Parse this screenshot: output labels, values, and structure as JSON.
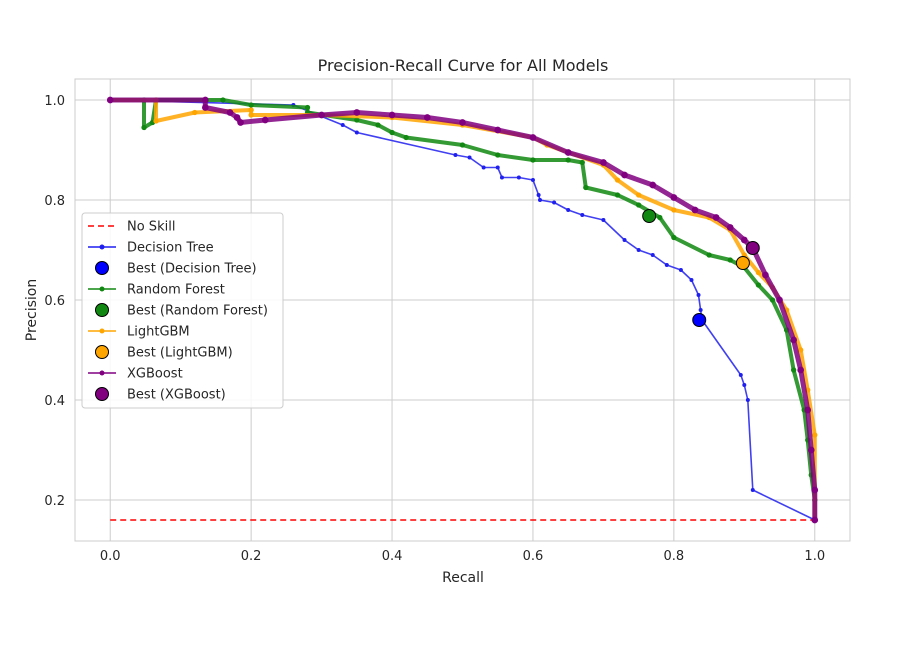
{
  "chart_data": {
    "type": "line",
    "title": "Precision-Recall Curve for All Models",
    "xlabel": "Recall",
    "ylabel": "Precision",
    "xlim": [
      -0.05,
      1.05
    ],
    "ylim": [
      0.118,
      1.042
    ],
    "xticks": [
      0.0,
      0.2,
      0.4,
      0.6,
      0.8,
      1.0
    ],
    "xtick_labels": [
      "0.0",
      "0.2",
      "0.4",
      "0.6",
      "0.8",
      "1.0"
    ],
    "yticks": [
      0.2,
      0.4,
      0.6,
      0.8,
      1.0
    ],
    "ytick_labels": [
      "0.2",
      "0.4",
      "0.6",
      "0.8",
      "1.0"
    ],
    "grid": true,
    "legend_position": "center-left",
    "baseline": {
      "name": "No Skill",
      "y": 0.16,
      "color": "#ff0000",
      "style": "dashed"
    },
    "series": [
      {
        "name": "Decision Tree",
        "color": "#1f1ff0",
        "x": [
          0.0,
          0.26,
          0.33,
          0.35,
          0.49,
          0.51,
          0.53,
          0.55,
          0.556,
          0.58,
          0.6,
          0.608,
          0.61,
          0.63,
          0.65,
          0.67,
          0.7,
          0.73,
          0.75,
          0.77,
          0.79,
          0.81,
          0.825,
          0.835,
          0.838,
          0.84,
          0.895,
          0.9,
          0.905,
          0.912,
          1.0
        ],
        "y": [
          1.0,
          0.99,
          0.95,
          0.935,
          0.89,
          0.885,
          0.865,
          0.865,
          0.845,
          0.845,
          0.84,
          0.81,
          0.8,
          0.795,
          0.78,
          0.77,
          0.76,
          0.72,
          0.7,
          0.69,
          0.67,
          0.66,
          0.64,
          0.61,
          0.58,
          0.56,
          0.45,
          0.43,
          0.4,
          0.22,
          0.16
        ]
      },
      {
        "name": "Best (Decision Tree)",
        "color": "#0000ff",
        "x": [
          0.836
        ],
        "y": [
          0.56
        ]
      },
      {
        "name": "Random Forest",
        "color": "#118811",
        "x": [
          0.0,
          0.048,
          0.048,
          0.06,
          0.065,
          0.16,
          0.2,
          0.28,
          0.28,
          0.35,
          0.38,
          0.4,
          0.42,
          0.5,
          0.55,
          0.6,
          0.65,
          0.67,
          0.675,
          0.72,
          0.75,
          0.78,
          0.8,
          0.85,
          0.88,
          0.9,
          0.92,
          0.94,
          0.96,
          0.97,
          0.985,
          0.99,
          0.995,
          1.0,
          1.0
        ],
        "y": [
          1.0,
          1.0,
          0.945,
          0.955,
          1.0,
          1.0,
          0.99,
          0.985,
          0.975,
          0.96,
          0.95,
          0.935,
          0.925,
          0.91,
          0.89,
          0.88,
          0.88,
          0.875,
          0.825,
          0.81,
          0.79,
          0.765,
          0.725,
          0.69,
          0.68,
          0.665,
          0.63,
          0.6,
          0.54,
          0.46,
          0.38,
          0.32,
          0.25,
          0.2,
          0.16
        ]
      },
      {
        "name": "Best (Random Forest)",
        "color": "#118811",
        "x": [
          0.765
        ],
        "y": [
          0.768
        ]
      },
      {
        "name": "LightGBM",
        "color": "#ffa500",
        "x": [
          0.0,
          0.065,
          0.065,
          0.12,
          0.2,
          0.2,
          0.3,
          0.4,
          0.5,
          0.6,
          0.62,
          0.7,
          0.72,
          0.75,
          0.8,
          0.85,
          0.88,
          0.9,
          0.92,
          0.94,
          0.96,
          0.98,
          0.99,
          1.0,
          1.0
        ],
        "y": [
          1.0,
          1.0,
          0.958,
          0.975,
          0.98,
          0.97,
          0.97,
          0.965,
          0.95,
          0.925,
          0.91,
          0.87,
          0.84,
          0.81,
          0.78,
          0.765,
          0.74,
          0.69,
          0.655,
          0.625,
          0.58,
          0.5,
          0.42,
          0.33,
          0.16
        ]
      },
      {
        "name": "Best (LightGBM)",
        "color": "#ffa500",
        "x": [
          0.898
        ],
        "y": [
          0.674
        ]
      },
      {
        "name": "XGBoost",
        "color": "#800080",
        "x": [
          0.0,
          0.135,
          0.135,
          0.17,
          0.18,
          0.185,
          0.22,
          0.3,
          0.35,
          0.4,
          0.45,
          0.5,
          0.55,
          0.6,
          0.65,
          0.7,
          0.73,
          0.77,
          0.8,
          0.83,
          0.86,
          0.88,
          0.9,
          0.912,
          0.93,
          0.95,
          0.97,
          0.98,
          0.99,
          0.995,
          1.0,
          1.0
        ],
        "y": [
          1.0,
          1.0,
          0.985,
          0.975,
          0.965,
          0.955,
          0.96,
          0.97,
          0.975,
          0.97,
          0.965,
          0.955,
          0.94,
          0.925,
          0.895,
          0.875,
          0.85,
          0.83,
          0.805,
          0.78,
          0.765,
          0.745,
          0.72,
          0.704,
          0.65,
          0.6,
          0.52,
          0.46,
          0.38,
          0.3,
          0.22,
          0.16
        ]
      },
      {
        "name": "Best (XGBoost)",
        "color": "#800080",
        "x": [
          0.912
        ],
        "y": [
          0.704
        ]
      }
    ]
  }
}
